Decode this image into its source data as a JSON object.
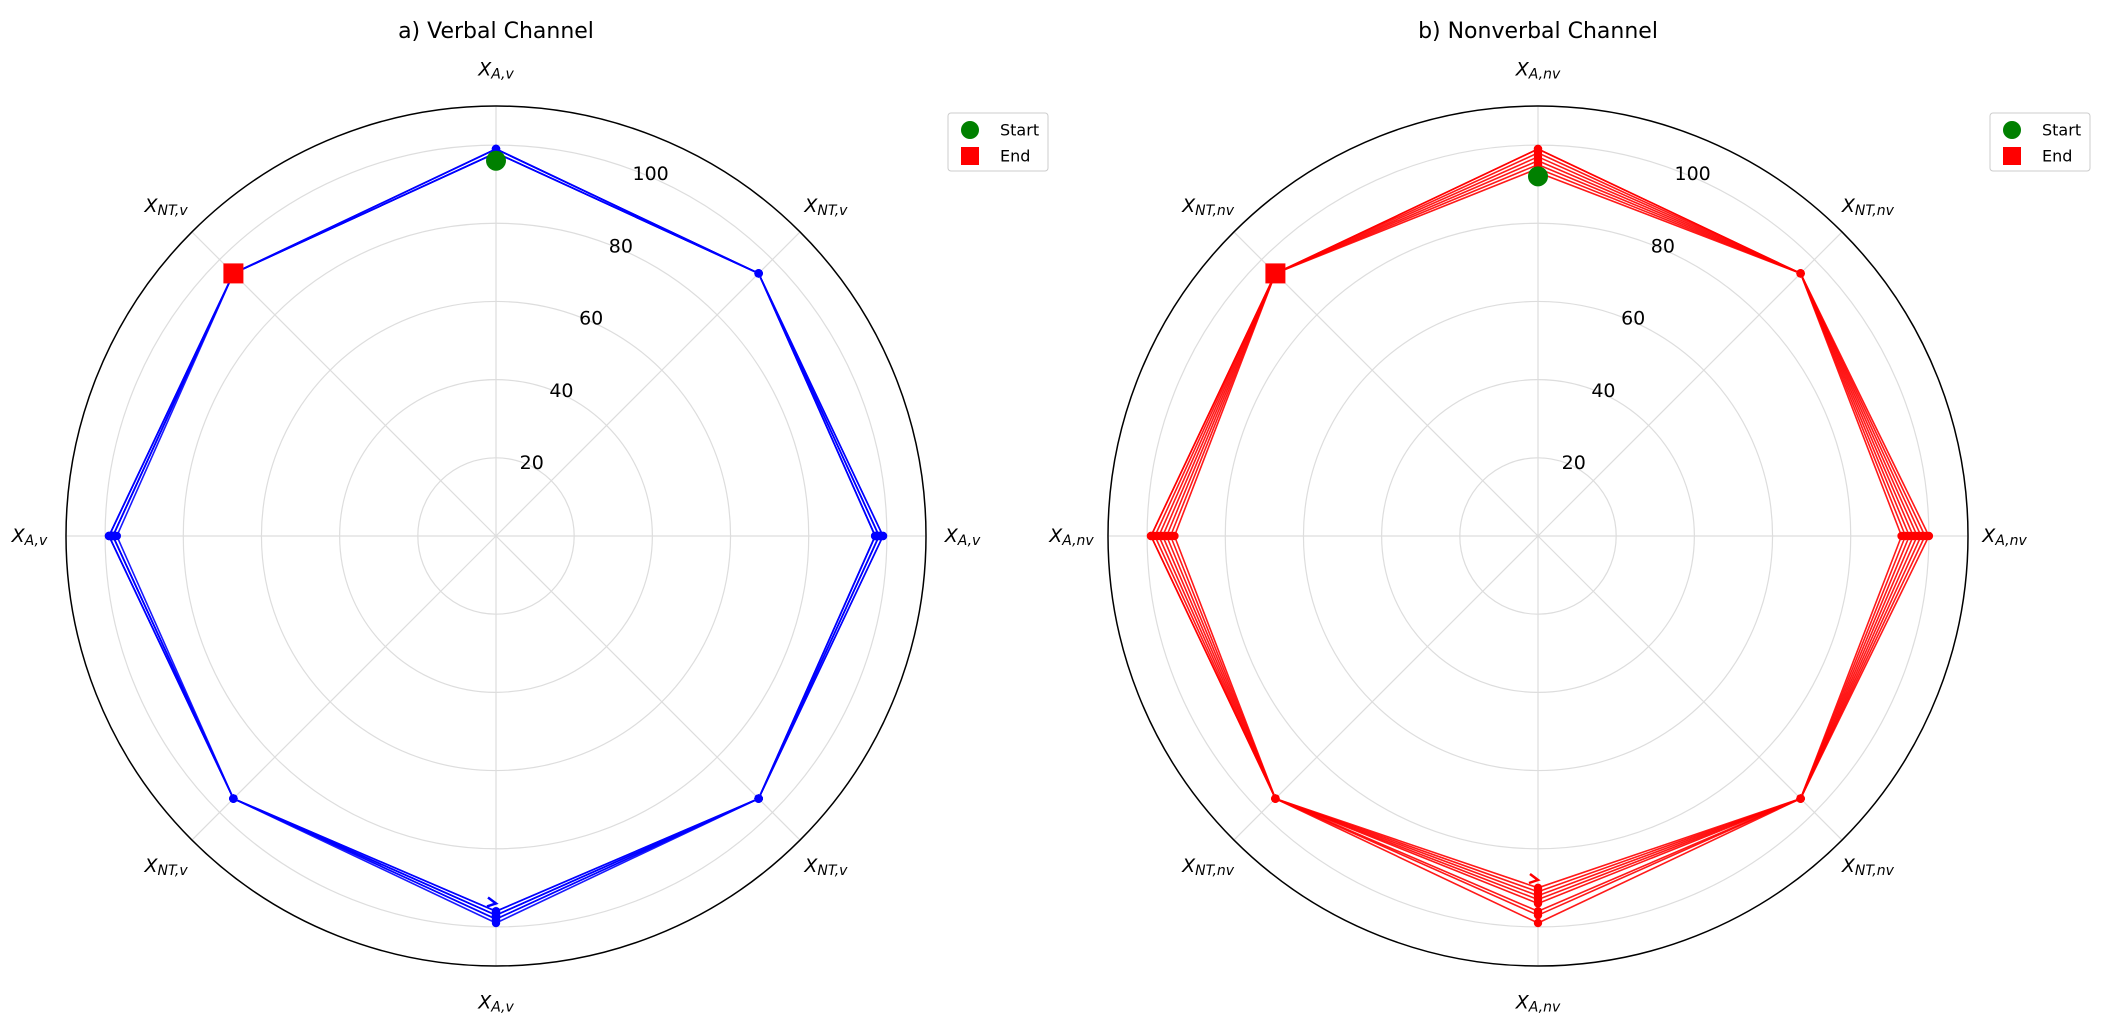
{
  "colors": {
    "verbal": "#0000ff",
    "nonverbal": "#ff0000",
    "start": "#008000",
    "end": "#ff0000",
    "grid": "#dddddd",
    "frame": "#000000"
  },
  "legend": {
    "start_label": "Start",
    "end_label": "End",
    "placement": "upper-right-outside"
  },
  "chart_data": [
    {
      "type": "radar",
      "title": "a) Verbal Channel",
      "axes": [
        {
          "base": "X",
          "sub": "A,v"
        },
        {
          "base": "X",
          "sub": "NT,v"
        },
        {
          "base": "X",
          "sub": "A,v"
        },
        {
          "base": "X",
          "sub": "NT,v"
        },
        {
          "base": "X",
          "sub": "A,v"
        },
        {
          "base": "X",
          "sub": "NT,v"
        },
        {
          "base": "X",
          "sub": "A,v"
        },
        {
          "base": "X",
          "sub": "NT,v"
        }
      ],
      "rlim": [
        0,
        110
      ],
      "rticks": [
        20,
        40,
        60,
        80,
        100
      ],
      "grid": true,
      "color": "#0000ff",
      "trajectory": {
        "axis0_start": 96,
        "axis0_end": 99,
        "last_axis": 7,
        "end_value": 95,
        "repeats": [
          [
            99,
            95,
            98,
            95,
            96,
            95,
            98,
            95
          ],
          [
            98,
            95,
            97,
            95,
            97,
            95,
            99,
            95
          ],
          [
            98,
            95,
            99,
            95,
            98,
            95,
            97,
            95
          ],
          [
            99,
            95,
            97,
            95,
            96,
            95,
            98,
            95
          ],
          [
            98,
            95,
            99,
            95,
            98,
            95,
            99,
            95
          ],
          [
            99,
            95,
            98,
            95,
            97,
            95,
            98,
            95
          ],
          [
            98,
            95,
            98,
            95,
            99,
            95,
            99,
            95
          ]
        ],
        "final_sequence": [
          99,
          95,
          97,
          95,
          97,
          95,
          98,
          95
        ]
      },
      "start": {
        "axis": 0,
        "value": 96
      },
      "end": {
        "axis": 7,
        "value": 95
      }
    },
    {
      "type": "radar",
      "title": "b) Nonverbal Channel",
      "axes": [
        {
          "base": "X",
          "sub": "A,nv"
        },
        {
          "base": "X",
          "sub": "NT,nv"
        },
        {
          "base": "X",
          "sub": "A,nv"
        },
        {
          "base": "X",
          "sub": "NT,nv"
        },
        {
          "base": "X",
          "sub": "A,nv"
        },
        {
          "base": "X",
          "sub": "NT,nv"
        },
        {
          "base": "X",
          "sub": "A,nv"
        },
        {
          "base": "X",
          "sub": "NT,nv"
        }
      ],
      "rlim": [
        0,
        110
      ],
      "rticks": [
        20,
        40,
        60,
        80,
        100
      ],
      "grid": true,
      "color": "#ff0000",
      "trajectory": {
        "axis0_start": 92,
        "axis0_end": 99,
        "last_axis": 7,
        "end_value": 95,
        "repeats": [
          [
            93,
            95,
            93,
            95,
            90,
            95,
            99,
            95
          ],
          [
            94,
            95,
            94,
            95,
            91,
            95,
            98,
            95
          ],
          [
            95,
            95,
            95,
            95,
            92,
            95,
            97,
            95
          ],
          [
            96,
            95,
            96,
            95,
            93,
            95,
            96,
            95
          ],
          [
            97,
            95,
            97,
            95,
            94,
            95,
            95,
            95
          ],
          [
            98,
            95,
            98,
            95,
            96,
            95,
            94,
            95
          ],
          [
            99,
            95,
            99,
            95,
            97,
            95,
            93,
            95
          ]
        ],
        "final_sequence": [
          99,
          95,
          100,
          95,
          99,
          95,
          99,
          95
        ]
      },
      "start": {
        "axis": 0,
        "value": 92
      },
      "end": {
        "axis": 7,
        "value": 95
      }
    }
  ]
}
